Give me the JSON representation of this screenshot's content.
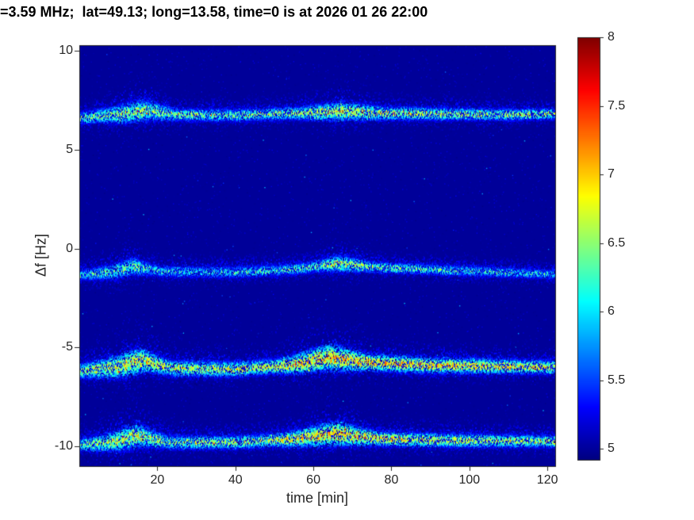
{
  "chart_data": {
    "type": "heatmap",
    "title": "=3.59 MHz;  lat=49.13; long=13.58, time=0 is at 2026 01 26 22:00",
    "xlabel": "time [min]",
    "ylabel": "Δf [Hz]",
    "xlim": [
      0,
      122
    ],
    "ylim": [
      -11,
      10.3
    ],
    "xticks": [
      20,
      40,
      60,
      80,
      100,
      120
    ],
    "yticks": [
      10,
      5,
      0,
      -5,
      -10
    ],
    "grid": false,
    "colormap": "jet",
    "background_value": 5.0,
    "colorbar": {
      "min": 4.92,
      "max": 8,
      "ticks": [
        5,
        5.5,
        6,
        6.5,
        7,
        7.5,
        8
      ],
      "position": "right"
    },
    "traces": [
      {
        "name": "spectral-line-plus-6.8Hz",
        "center_hz": [
          [
            0,
            6.6
          ],
          [
            10,
            6.8
          ],
          [
            17,
            7.0
          ],
          [
            25,
            6.78
          ],
          [
            40,
            6.75
          ],
          [
            55,
            6.85
          ],
          [
            68,
            6.95
          ],
          [
            78,
            6.85
          ],
          [
            95,
            6.82
          ],
          [
            110,
            6.78
          ],
          [
            122,
            6.82
          ]
        ],
        "width_hz": [
          [
            0,
            0.16
          ],
          [
            12,
            0.3
          ],
          [
            17,
            0.34
          ],
          [
            25,
            0.18
          ],
          [
            55,
            0.18
          ],
          [
            67,
            0.3
          ],
          [
            78,
            0.2
          ],
          [
            122,
            0.16
          ]
        ],
        "intensity": [
          [
            0,
            6.25
          ],
          [
            12,
            6.5
          ],
          [
            20,
            6.45
          ],
          [
            40,
            6.35
          ],
          [
            60,
            6.55
          ],
          [
            75,
            6.6
          ],
          [
            95,
            6.5
          ],
          [
            122,
            6.45
          ]
        ]
      },
      {
        "name": "spectral-line-minus-1Hz",
        "center_hz": [
          [
            0,
            -1.35
          ],
          [
            8,
            -1.2
          ],
          [
            14,
            -0.9
          ],
          [
            21,
            -1.15
          ],
          [
            40,
            -1.2
          ],
          [
            55,
            -1.05
          ],
          [
            66,
            -0.75
          ],
          [
            77,
            -0.95
          ],
          [
            95,
            -1.1
          ],
          [
            122,
            -1.3
          ]
        ],
        "width_hz": [
          [
            0,
            0.14
          ],
          [
            13,
            0.28
          ],
          [
            20,
            0.16
          ],
          [
            60,
            0.16
          ],
          [
            67,
            0.26
          ],
          [
            75,
            0.16
          ],
          [
            122,
            0.13
          ]
        ],
        "intensity": [
          [
            0,
            6.1
          ],
          [
            12,
            6.3
          ],
          [
            25,
            6.0
          ],
          [
            50,
            6.15
          ],
          [
            65,
            6.55
          ],
          [
            75,
            6.45
          ],
          [
            95,
            6.2
          ],
          [
            122,
            6.05
          ]
        ]
      },
      {
        "name": "spectral-line-minus-6Hz",
        "center_hz": [
          [
            0,
            -6.2
          ],
          [
            9,
            -6.0
          ],
          [
            16,
            -5.65
          ],
          [
            24,
            -6.05
          ],
          [
            40,
            -6.1
          ],
          [
            54,
            -5.9
          ],
          [
            64,
            -5.5
          ],
          [
            74,
            -5.75
          ],
          [
            90,
            -5.9
          ],
          [
            105,
            -5.95
          ],
          [
            122,
            -6.0
          ]
        ],
        "width_hz": [
          [
            0,
            0.2
          ],
          [
            14,
            0.42
          ],
          [
            22,
            0.24
          ],
          [
            50,
            0.22
          ],
          [
            64,
            0.42
          ],
          [
            75,
            0.26
          ],
          [
            122,
            0.2
          ]
        ],
        "intensity": [
          [
            0,
            6.5
          ],
          [
            13,
            6.75
          ],
          [
            25,
            6.55
          ],
          [
            45,
            6.6
          ],
          [
            60,
            6.9
          ],
          [
            80,
            6.9
          ],
          [
            100,
            6.8
          ],
          [
            122,
            6.7
          ]
        ]
      },
      {
        "name": "spectral-line-minus-9.8Hz",
        "center_hz": [
          [
            0,
            -9.95
          ],
          [
            9,
            -9.75
          ],
          [
            15,
            -9.45
          ],
          [
            23,
            -9.8
          ],
          [
            40,
            -9.8
          ],
          [
            54,
            -9.65
          ],
          [
            66,
            -9.35
          ],
          [
            76,
            -9.6
          ],
          [
            92,
            -9.7
          ],
          [
            108,
            -9.72
          ],
          [
            122,
            -9.75
          ]
        ],
        "width_hz": [
          [
            0,
            0.18
          ],
          [
            14,
            0.38
          ],
          [
            22,
            0.2
          ],
          [
            50,
            0.2
          ],
          [
            66,
            0.38
          ],
          [
            76,
            0.22
          ],
          [
            122,
            0.18
          ]
        ],
        "intensity": [
          [
            0,
            6.35
          ],
          [
            13,
            6.6
          ],
          [
            25,
            6.4
          ],
          [
            45,
            6.5
          ],
          [
            62,
            6.85
          ],
          [
            80,
            6.75
          ],
          [
            100,
            6.6
          ],
          [
            122,
            6.5
          ]
        ]
      }
    ]
  }
}
